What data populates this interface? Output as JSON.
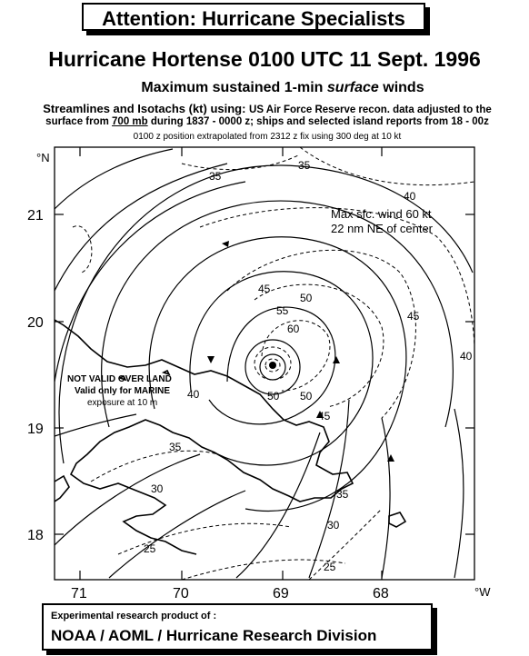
{
  "banner": "Attention:  Hurricane Specialists",
  "title": "Hurricane Hortense 0100 UTC 11 Sept. 1996",
  "subtitle_prefix": "Maximum sustained 1-min ",
  "subtitle_italic": "surface",
  "subtitle_suffix": " winds",
  "note_line1_bold": "Streamlines and Isotachs (kt) using: ",
  "note_line1_rest": "US Air Force Reserve recon. data adjusted to the",
  "note_line2_a": "surface from ",
  "note_line2_u": "700 mb",
  "note_line2_b": " during 1837 - 0000 z; ships and selected island reports from 18 - 00z",
  "note_line3": "0100 z position extrapolated from  2312 z  fix using 300 deg at 10 kt",
  "map": {
    "lat_unit": "°N",
    "lon_unit": "°W",
    "lat_ticks": [
      "21",
      "20",
      "19",
      "18"
    ],
    "lon_ticks": [
      "71",
      "70",
      "69",
      "68"
    ],
    "max_wind_line1": "Max sfc. wind 60 kt",
    "max_wind_line2": "22 nm NE  of center",
    "land_warning_1": "NOT VALID OVER LAND",
    "land_warning_2": "Valid only for MARINE",
    "land_warning_3": "exposure at 10 m",
    "isotach_labels": [
      "35",
      "35",
      "40",
      "45",
      "45",
      "50",
      "55",
      "60",
      "50",
      "50",
      "45",
      "40",
      "35",
      "30",
      "25",
      "25",
      "30",
      "35",
      "40"
    ]
  },
  "credit_line1": "Experimental research product of :",
  "credit_line2": "NOAA / AOML / Hurricane Research Division"
}
